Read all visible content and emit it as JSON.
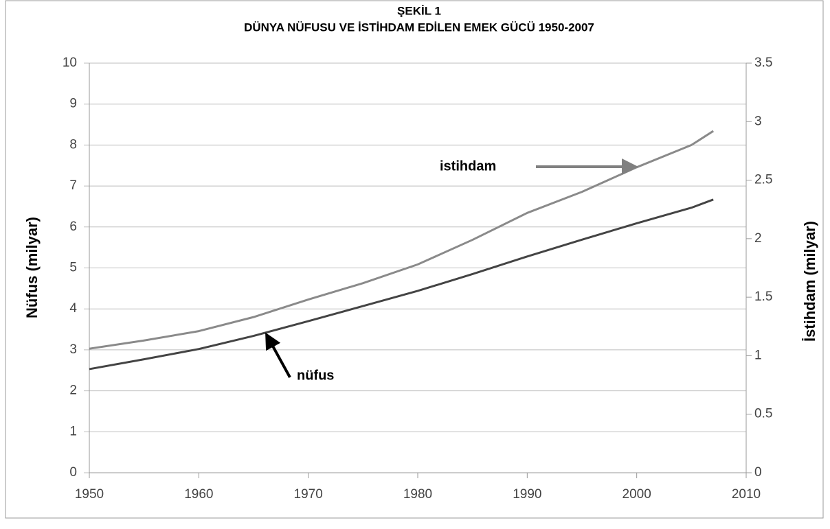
{
  "chart_data": {
    "type": "line",
    "title": "ŞEKİL 1",
    "subtitle": "DÜNYA NÜFUSU VE İSTİHDAM EDİLEN EMEK GÜCÜ 1950-2007",
    "y_label": "Nüfus (milyar)",
    "y2_label": "İstihdam (milyar)",
    "x": [
      1950,
      1955,
      1960,
      1965,
      1970,
      1975,
      1980,
      1985,
      1990,
      1995,
      2000,
      2005,
      2007
    ],
    "series": [
      {
        "name": "nüfus",
        "color": "#444444",
        "values": [
          2.53,
          2.77,
          3.02,
          3.34,
          3.7,
          4.07,
          4.44,
          4.85,
          5.28,
          5.69,
          6.09,
          6.47,
          6.67
        ]
      },
      {
        "name": "istihdam",
        "color": "#8a8a8a",
        "axis": "y2",
        "values": [
          1.06,
          1.13,
          1.21,
          1.33,
          1.48,
          1.62,
          1.78,
          1.99,
          2.22,
          2.4,
          2.61,
          2.8,
          2.92
        ]
      }
    ],
    "xlim": [
      1950,
      2010
    ],
    "xticks": [
      1950,
      1960,
      1970,
      1980,
      1990,
      2000,
      2010
    ],
    "ylim": [
      0,
      10
    ],
    "yticks": [
      0,
      1,
      2,
      3,
      4,
      5,
      6,
      7,
      8,
      9,
      10
    ],
    "y2lim": [
      0,
      3.5
    ],
    "y2ticks": [
      0,
      0.5,
      1,
      1.5,
      2,
      2.5,
      3,
      3.5
    ],
    "grid": true
  }
}
